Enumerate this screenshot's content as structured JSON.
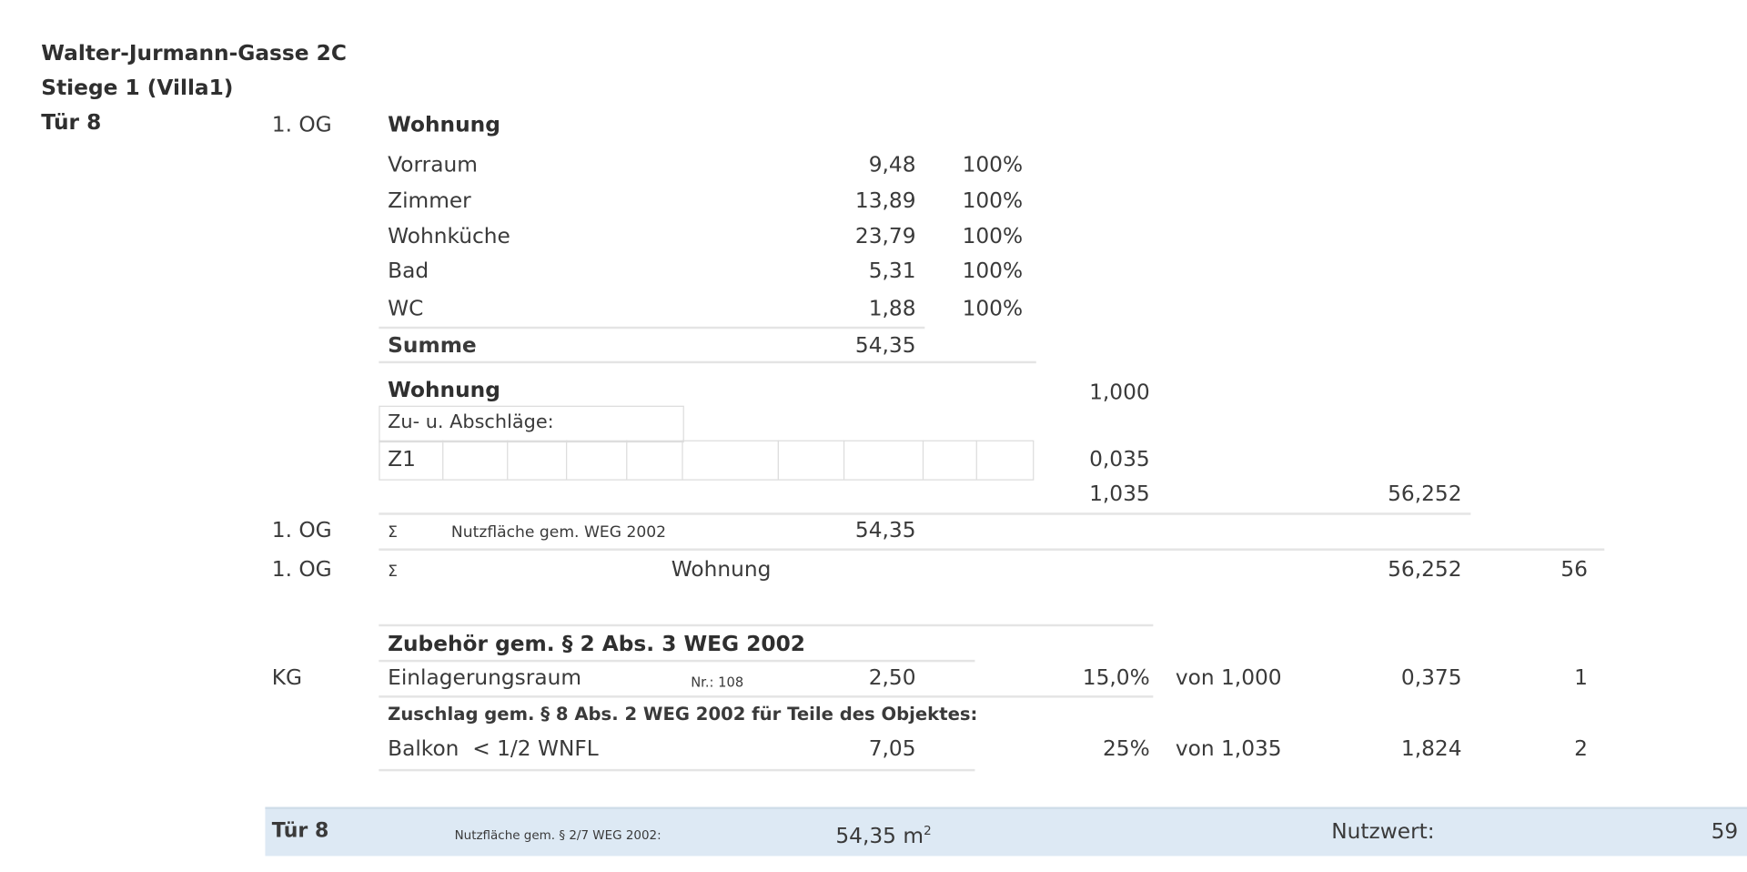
{
  "header": {
    "street": "Walter-Jurmann-Gasse 2C",
    "stair": "Stiege 1 (Villa1)",
    "door": "Tür 8"
  },
  "unit": {
    "floor": "1. OG",
    "type": "Wohnung",
    "rooms": [
      {
        "name": "Vorraum",
        "area": "9,48",
        "pct": "100%"
      },
      {
        "name": "Zimmer",
        "area": "13,89",
        "pct": "100%"
      },
      {
        "name": "Wohnküche",
        "area": "23,79",
        "pct": "100%"
      },
      {
        "name": "Bad",
        "area": "5,31",
        "pct": "100%"
      },
      {
        "name": "WC",
        "area": "1,88",
        "pct": "100%"
      }
    ],
    "sum_label": "Summe",
    "sum_value": "54,35",
    "factor_label": "Wohnung",
    "factor_value": "1,000",
    "adjust_label": "Zu- u. Abschläge:",
    "adjust_code": "Z1",
    "adjust_value": "0,035",
    "total_factor": "1,035",
    "total_value": "56,252"
  },
  "summary": [
    {
      "floor": "1. OG",
      "sigma": "Σ",
      "label": "Nutzfläche gem. WEG 2002",
      "area": "54,35"
    },
    {
      "floor": "1. OG",
      "sigma": "Σ",
      "label": "Wohnung",
      "value": "56,252",
      "nw": "56"
    }
  ],
  "accessory": {
    "heading": "Zubehör gem. § 2 Abs. 3 WEG 2002",
    "floor": "KG",
    "name": "Einlagerungsraum",
    "nr": "Nr.: 108",
    "area": "2,50",
    "pct": "15,0%",
    "von": "von 1,000",
    "value": "0,375",
    "nw": "1"
  },
  "surcharge": {
    "heading": "Zuschlag gem. § 8 Abs. 2 WEG 2002 für Teile des Objektes:",
    "name": "Balkon  < 1/2 WNFL",
    "area": "7,05",
    "pct": "25%",
    "von": "von 1,035",
    "value": "1,824",
    "nw": "2"
  },
  "footer": {
    "door": "Tür 8",
    "area_label": "Nutzfläche gem. § 2/7 WEG 2002:",
    "area": "54,35",
    "unit": "m",
    "unit_exp": "2",
    "nw_label": "Nutzwert:",
    "nw": "59",
    "color": "#dde9f4"
  }
}
